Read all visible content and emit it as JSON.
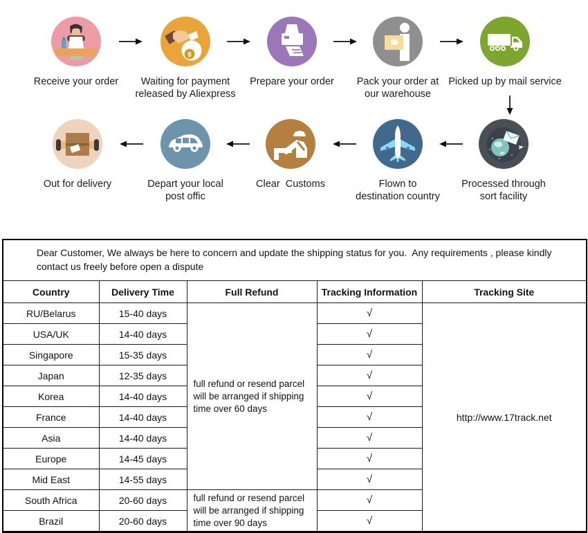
{
  "process": {
    "row1": [
      {
        "name": "receive-order",
        "lines": [
          "Receive your order"
        ],
        "color": "#ec9ba7"
      },
      {
        "name": "waiting-payment",
        "lines": [
          "Waiting for payment",
          "released by Aliexpress"
        ],
        "color": "#e9a53c"
      },
      {
        "name": "prepare-order",
        "lines": [
          "Prepare your order"
        ],
        "color": "#9b77b9"
      },
      {
        "name": "pack-warehouse",
        "lines": [
          "Pack your order at",
          "our warehouse"
        ],
        "color": "#8f8f8f"
      },
      {
        "name": "mail-pickup",
        "lines": [
          "Picked up by mail service"
        ],
        "color": "#7ca62f"
      }
    ],
    "row2": [
      {
        "name": "out-for-delivery",
        "lines": [
          "Out for delivery"
        ],
        "color": "#eed3be"
      },
      {
        "name": "depart-post-office",
        "lines": [
          "Depart your local",
          "post offic"
        ],
        "color": "#6d94ab"
      },
      {
        "name": "clear-customs",
        "lines": [
          "Clear  Customs"
        ],
        "color": "#b5803f"
      },
      {
        "name": "flown-destination",
        "lines": [
          "Flown to",
          "destination country"
        ],
        "color": "#41688d"
      },
      {
        "name": "sort-facility",
        "lines": [
          "Processed through",
          "sort facility"
        ],
        "color": "#4a4e57"
      }
    ]
  },
  "notice_lines": [
    "Dear Customer, We always be here to concern and update the shipping status for you.  Any requirements , please kindly",
    "contact us freely before open a dispute"
  ],
  "table": {
    "headers": [
      "Country",
      "Delivery Time",
      "Full Refund",
      "Tracking Information",
      "Tracking Site"
    ],
    "rows": [
      {
        "country": "RU/Belarus",
        "delivery_time": "15-40 days",
        "tracking": "√"
      },
      {
        "country": "USA/UK",
        "delivery_time": "14-40 days",
        "tracking": "√"
      },
      {
        "country": "Singapore",
        "delivery_time": "15-35 days",
        "tracking": "√"
      },
      {
        "country": "Japan",
        "delivery_time": "12-35 days",
        "tracking": "√"
      },
      {
        "country": "Korea",
        "delivery_time": "14-40 days",
        "tracking": "√"
      },
      {
        "country": "France",
        "delivery_time": "14-40 days",
        "tracking": "√"
      },
      {
        "country": "Asia",
        "delivery_time": "14-40 days",
        "tracking": "√"
      },
      {
        "country": "Europe",
        "delivery_time": "14-45 days",
        "tracking": "√"
      },
      {
        "country": "Mid East",
        "delivery_time": "14-55 days",
        "tracking": "√"
      },
      {
        "country": "South Africa",
        "delivery_time": "20-60 days",
        "tracking": "√"
      },
      {
        "country": "Brazil",
        "delivery_time": "20-60 days",
        "tracking": "√"
      }
    ],
    "refund_policies": [
      {
        "lines": [
          "full refund or resend parcel",
          "will be arranged if shipping",
          "time over 60 days"
        ],
        "applies_to_rows": 9
      },
      {
        "lines": [
          "full refund or resend parcel",
          "will be arranged if shipping",
          "time over 90 days"
        ],
        "applies_to_rows": 2
      }
    ],
    "tracking_site": "http://www.17track.net"
  }
}
